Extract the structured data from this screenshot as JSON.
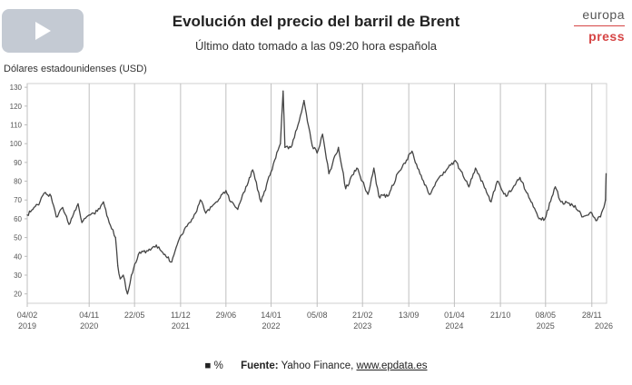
{
  "title": "Evolución del precio del barril de Brent",
  "subtitle": "Último dato tomado a las 09:20 hora española",
  "logo": {
    "top": "europa",
    "bottom": "press"
  },
  "play_icon": "play-icon",
  "colors": {
    "line": "#444444",
    "grid": "#bfbfbf",
    "logo_red": "#d64545",
    "play_bg": "#c4cad3"
  },
  "footer": {
    "legend_symbol": "■",
    "legend_label": "%",
    "source_label": "Fuente:",
    "source_text": "Yahoo Finance,",
    "source_link": "www.epdata.es"
  },
  "chart_data": {
    "type": "line",
    "title": "Evolución del precio del barril de Brent",
    "ylabel": "Dólares estadounidenses (USD)",
    "xlabel": "",
    "ylim": [
      15,
      132
    ],
    "yticks": [
      20,
      30,
      40,
      50,
      60,
      70,
      80,
      90,
      100,
      110,
      120,
      130
    ],
    "xlim": [
      "2019-02-04",
      "2026-02-01"
    ],
    "grid": "vertical",
    "xticks": [
      {
        "date": "2019-02-04",
        "label": "04/02",
        "year": "2019"
      },
      {
        "date": "2019-11-04",
        "label": "04/11",
        "year": "2020"
      },
      {
        "date": "2020-05-22",
        "label": "22/05",
        "year": ""
      },
      {
        "date": "2020-12-11",
        "label": "11/12",
        "year": "2021"
      },
      {
        "date": "2021-06-29",
        "label": "29/06",
        "year": ""
      },
      {
        "date": "2022-01-14",
        "label": "14/01",
        "year": "2022"
      },
      {
        "date": "2022-08-05",
        "label": "05/08",
        "year": ""
      },
      {
        "date": "2023-02-21",
        "label": "21/02",
        "year": "2023"
      },
      {
        "date": "2023-09-13",
        "label": "13/09",
        "year": ""
      },
      {
        "date": "2024-04-01",
        "label": "01/04",
        "year": "2024"
      },
      {
        "date": "2024-10-21",
        "label": "21/10",
        "year": ""
      },
      {
        "date": "2025-05-08",
        "label": "08/05",
        "year": "2025"
      },
      {
        "date": "2025-11-28",
        "label": "28/11",
        "year": ""
      }
    ],
    "year_labels": [
      {
        "date": "2019-02-04",
        "label": "2019"
      },
      {
        "date": "2019-11-04",
        "label": "2020"
      },
      {
        "date": "2020-12-11",
        "label": "2021"
      },
      {
        "date": "2022-01-14",
        "label": "2022"
      },
      {
        "date": "2023-02-21",
        "label": "2023"
      },
      {
        "date": "2024-04-01",
        "label": "2024"
      },
      {
        "date": "2025-05-08",
        "label": "2025"
      },
      {
        "date": "2026-01-20",
        "label": "2026"
      }
    ],
    "series": [
      {
        "points": [
          [
            "2019-02-04",
            62
          ],
          [
            "2019-03-01",
            65
          ],
          [
            "2019-04-01",
            69
          ],
          [
            "2019-04-25",
            74
          ],
          [
            "2019-05-20",
            72
          ],
          [
            "2019-06-12",
            61
          ],
          [
            "2019-07-10",
            66
          ],
          [
            "2019-08-07",
            57
          ],
          [
            "2019-09-16",
            68
          ],
          [
            "2019-10-03",
            58
          ],
          [
            "2019-11-04",
            62
          ],
          [
            "2019-12-10",
            64
          ],
          [
            "2020-01-06",
            69
          ],
          [
            "2020-01-31",
            58
          ],
          [
            "2020-02-28",
            50
          ],
          [
            "2020-03-09",
            35
          ],
          [
            "2020-03-20",
            28
          ],
          [
            "2020-04-02",
            30
          ],
          [
            "2020-04-21",
            20
          ],
          [
            "2020-05-08",
            30
          ],
          [
            "2020-06-08",
            41
          ],
          [
            "2020-07-15",
            43
          ],
          [
            "2020-08-26",
            46
          ],
          [
            "2020-09-28",
            41
          ],
          [
            "2020-11-02",
            37
          ],
          [
            "2020-12-01",
            48
          ],
          [
            "2021-01-08",
            56
          ],
          [
            "2021-02-15",
            63
          ],
          [
            "2021-03-08",
            70
          ],
          [
            "2021-04-01",
            63
          ],
          [
            "2021-05-18",
            69
          ],
          [
            "2021-06-29",
            75
          ],
          [
            "2021-07-20",
            69
          ],
          [
            "2021-08-20",
            65
          ],
          [
            "2021-09-15",
            74
          ],
          [
            "2021-10-25",
            86
          ],
          [
            "2021-12-01",
            69
          ],
          [
            "2022-01-14",
            85
          ],
          [
            "2022-02-24",
            100
          ],
          [
            "2022-03-08",
            128
          ],
          [
            "2022-03-16",
            98
          ],
          [
            "2022-04-11",
            98
          ],
          [
            "2022-05-18",
            112
          ],
          [
            "2022-06-08",
            123
          ],
          [
            "2022-07-14",
            99
          ],
          [
            "2022-08-05",
            95
          ],
          [
            "2022-08-29",
            105
          ],
          [
            "2022-09-26",
            84
          ],
          [
            "2022-11-07",
            98
          ],
          [
            "2022-12-09",
            76
          ],
          [
            "2023-01-27",
            87
          ],
          [
            "2023-03-17",
            73
          ],
          [
            "2023-04-12",
            87
          ],
          [
            "2023-05-04",
            72
          ],
          [
            "2023-06-12",
            72
          ],
          [
            "2023-07-31",
            85
          ],
          [
            "2023-09-27",
            96
          ],
          [
            "2023-10-17",
            89
          ],
          [
            "2023-12-12",
            73
          ],
          [
            "2024-01-25",
            82
          ],
          [
            "2024-04-05",
            91
          ],
          [
            "2024-06-04",
            77
          ],
          [
            "2024-07-03",
            87
          ],
          [
            "2024-09-10",
            69
          ],
          [
            "2024-10-07",
            80
          ],
          [
            "2024-11-15",
            72
          ],
          [
            "2025-01-15",
            82
          ],
          [
            "2025-03-05",
            69
          ],
          [
            "2025-04-09",
            60
          ],
          [
            "2025-05-05",
            60
          ],
          [
            "2025-06-20",
            77
          ],
          [
            "2025-07-15",
            69
          ],
          [
            "2025-09-15",
            67
          ],
          [
            "2025-10-20",
            61
          ],
          [
            "2025-11-28",
            63
          ],
          [
            "2025-12-16",
            59
          ],
          [
            "2026-01-05",
            61
          ],
          [
            "2026-01-20",
            66
          ],
          [
            "2026-01-27",
            70
          ],
          [
            "2026-01-30",
            84
          ]
        ]
      }
    ]
  }
}
